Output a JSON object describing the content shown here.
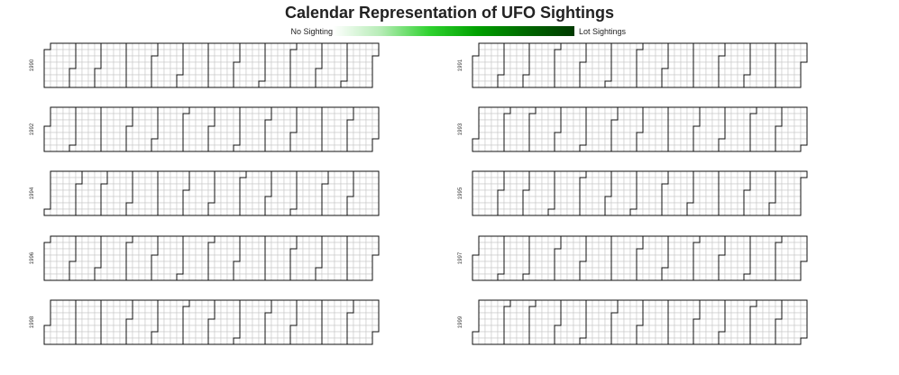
{
  "chart_data": {
    "type": "heatmap",
    "title": "Calendar Representation of UFO Sightings",
    "legend": {
      "min_label": "No Sighting",
      "max_label": "Lot Sightings",
      "color_scale": [
        "#ffffff",
        "#b5ecb5",
        "#2fd22f",
        "#00a000",
        "#006800",
        "#003a00"
      ]
    },
    "years": [
      "1990",
      "1991",
      "1992",
      "1993",
      "1994",
      "1995",
      "1996",
      "1997",
      "1998",
      "1999"
    ],
    "week_start": "Sunday",
    "cell_fill": "#ffffff",
    "grid_color": "#c8c8c8",
    "month_outline_color": "#111111"
  }
}
